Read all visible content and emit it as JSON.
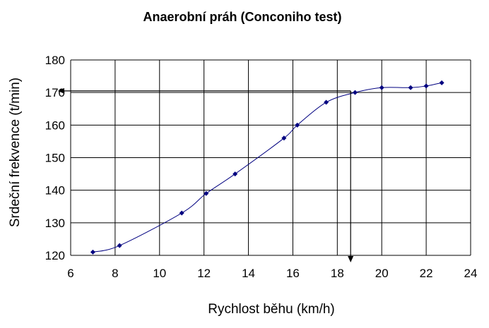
{
  "chart_data": {
    "type": "scatter",
    "title": "Anaerobní práh (Conconiho test)",
    "xlabel": "Rychlost běhu (km/h)",
    "ylabel": "Srdeční frekvence (t/min)",
    "xlim": [
      6,
      24
    ],
    "ylim": [
      120,
      180
    ],
    "xticks": [
      "6",
      "8",
      "10",
      "12",
      "14",
      "16",
      "18",
      "20",
      "22",
      "24"
    ],
    "yticks": [
      "120",
      "130",
      "140",
      "150",
      "160",
      "170",
      "180"
    ],
    "grid": true,
    "legend": "none",
    "smoothed_line": true,
    "series": [
      {
        "x": [
          7.0,
          8.2,
          11.0,
          12.1,
          13.4,
          15.6,
          16.2,
          17.5,
          18.8,
          20.0,
          21.3,
          22.0,
          22.7
        ],
        "y": [
          121,
          123,
          133,
          139,
          145,
          156,
          160,
          167,
          170,
          171.5,
          171.5,
          172,
          173
        ]
      }
    ],
    "annotations": {
      "threshold_speed": 18.6,
      "threshold_heart_rate": 170.5
    },
    "colors": {
      "marker": "#000080",
      "line": "#000080",
      "grid": "#000000",
      "arrow": "#000000"
    }
  }
}
